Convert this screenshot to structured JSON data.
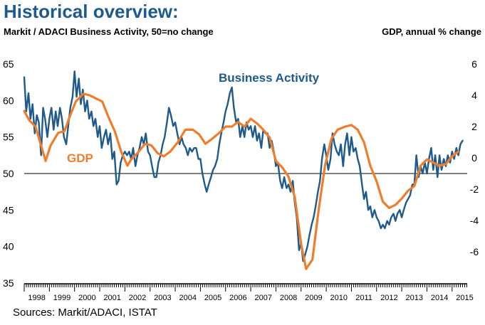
{
  "chart_data": {
    "type": "line",
    "title": "Historical overview:",
    "left_axis_label": "Markit / ADACI  Business Activity, 50=no change",
    "right_axis_label": "GDP, annual % change",
    "source": "Sources: Markit/ADACI, ISTAT",
    "y_left": {
      "min": 35,
      "max": 65,
      "ticks": [
        "65",
        "60",
        "55",
        "50",
        "45",
        "40",
        "35"
      ],
      "reference_line": 50
    },
    "y_right": {
      "min": -8,
      "max": 6,
      "ticks": [
        "6",
        "4",
        "2",
        "0",
        "-2",
        "-4",
        "-6"
      ]
    },
    "x": {
      "start": 1998.0,
      "end": 2015.6,
      "years": [
        "1998",
        "1999",
        "2000",
        "2001",
        "2002",
        "2003",
        "2004",
        "2005",
        "2006",
        "2007",
        "2008",
        "2009",
        "2010",
        "2011",
        "2012",
        "2013",
        "2014",
        "2015"
      ]
    },
    "colors": {
      "business_activity": "#1f5a8c",
      "gdp": "#ef7d2b",
      "axis": "#000000"
    },
    "series": [
      {
        "name": "Business Activity",
        "axis": "left",
        "color": "#1f5a8c",
        "label": "Business Activity",
        "points": [
          [
            1998.0,
            63.2
          ],
          [
            1998.08,
            58.5
          ],
          [
            1998.17,
            61.0
          ],
          [
            1998.25,
            57.5
          ],
          [
            1998.33,
            59.5
          ],
          [
            1998.42,
            55.5
          ],
          [
            1998.5,
            58.0
          ],
          [
            1998.58,
            57.0
          ],
          [
            1998.67,
            52.5
          ],
          [
            1998.75,
            59.0
          ],
          [
            1998.83,
            57.5
          ],
          [
            1998.92,
            55.0
          ],
          [
            1999.0,
            57.5
          ],
          [
            1999.08,
            59.0
          ],
          [
            1999.17,
            56.0
          ],
          [
            1999.25,
            58.5
          ],
          [
            1999.33,
            56.5
          ],
          [
            1999.42,
            59.0
          ],
          [
            1999.5,
            57.5
          ],
          [
            1999.58,
            55.0
          ],
          [
            1999.67,
            54.0
          ],
          [
            1999.75,
            56.5
          ],
          [
            1999.83,
            59.0
          ],
          [
            1999.92,
            60.5
          ],
          [
            2000.0,
            64.0
          ],
          [
            2000.08,
            60.5
          ],
          [
            2000.17,
            63.0
          ],
          [
            2000.25,
            59.5
          ],
          [
            2000.33,
            61.5
          ],
          [
            2000.42,
            58.5
          ],
          [
            2000.5,
            60.0
          ],
          [
            2000.58,
            57.5
          ],
          [
            2000.67,
            58.5
          ],
          [
            2000.75,
            56.5
          ],
          [
            2000.83,
            57.5
          ],
          [
            2000.92,
            55.0
          ],
          [
            2001.0,
            56.5
          ],
          [
            2001.08,
            53.5
          ],
          [
            2001.17,
            55.0
          ],
          [
            2001.25,
            56.0
          ],
          [
            2001.33,
            54.0
          ],
          [
            2001.42,
            55.5
          ],
          [
            2001.5,
            52.0
          ],
          [
            2001.58,
            53.0
          ],
          [
            2001.67,
            48.5
          ],
          [
            2001.75,
            49.0
          ],
          [
            2001.83,
            51.5
          ],
          [
            2001.92,
            52.5
          ],
          [
            2002.0,
            53.0
          ],
          [
            2002.08,
            52.5
          ],
          [
            2002.17,
            53.0
          ],
          [
            2002.25,
            52.0
          ],
          [
            2002.33,
            53.5
          ],
          [
            2002.42,
            51.0
          ],
          [
            2002.5,
            52.5
          ],
          [
            2002.58,
            53.5
          ],
          [
            2002.67,
            55.0
          ],
          [
            2002.75,
            54.0
          ],
          [
            2002.83,
            55.5
          ],
          [
            2002.92,
            53.0
          ],
          [
            2003.0,
            52.5
          ],
          [
            2003.08,
            51.0
          ],
          [
            2003.17,
            49.5
          ],
          [
            2003.25,
            49.5
          ],
          [
            2003.33,
            51.5
          ],
          [
            2003.42,
            52.5
          ],
          [
            2003.5,
            54.0
          ],
          [
            2003.58,
            55.0
          ],
          [
            2003.67,
            57.0
          ],
          [
            2003.75,
            59.0
          ],
          [
            2003.83,
            58.0
          ],
          [
            2003.92,
            56.5
          ],
          [
            2004.0,
            57.0
          ],
          [
            2004.08,
            55.5
          ],
          [
            2004.17,
            54.0
          ],
          [
            2004.25,
            55.0
          ],
          [
            2004.33,
            54.0
          ],
          [
            2004.42,
            53.5
          ],
          [
            2004.5,
            52.5
          ],
          [
            2004.58,
            53.5
          ],
          [
            2004.67,
            53.0
          ],
          [
            2004.75,
            53.5
          ],
          [
            2004.83,
            53.5
          ],
          [
            2004.92,
            52.0
          ],
          [
            2005.0,
            52.0
          ],
          [
            2005.08,
            50.0
          ],
          [
            2005.17,
            48.5
          ],
          [
            2005.25,
            47.5
          ],
          [
            2005.33,
            48.5
          ],
          [
            2005.42,
            49.5
          ],
          [
            2005.5,
            50.5
          ],
          [
            2005.58,
            51.0
          ],
          [
            2005.67,
            52.0
          ],
          [
            2005.75,
            54.0
          ],
          [
            2005.83,
            55.5
          ],
          [
            2005.92,
            57.0
          ],
          [
            2006.0,
            58.5
          ],
          [
            2006.08,
            59.5
          ],
          [
            2006.17,
            61.0
          ],
          [
            2006.25,
            61.8
          ],
          [
            2006.33,
            59.0
          ],
          [
            2006.42,
            57.0
          ],
          [
            2006.5,
            57.5
          ],
          [
            2006.58,
            55.0
          ],
          [
            2006.67,
            56.5
          ],
          [
            2006.75,
            55.0
          ],
          [
            2006.83,
            57.0
          ],
          [
            2006.92,
            56.0
          ],
          [
            2007.0,
            56.5
          ],
          [
            2007.08,
            55.0
          ],
          [
            2007.17,
            56.5
          ],
          [
            2007.25,
            54.5
          ],
          [
            2007.33,
            55.5
          ],
          [
            2007.42,
            53.5
          ],
          [
            2007.5,
            56.0
          ],
          [
            2007.58,
            55.5
          ],
          [
            2007.67,
            55.5
          ],
          [
            2007.75,
            53.5
          ],
          [
            2007.83,
            54.5
          ],
          [
            2007.92,
            53.0
          ],
          [
            2008.0,
            51.0
          ],
          [
            2008.08,
            51.5
          ],
          [
            2008.17,
            49.0
          ],
          [
            2008.25,
            48.0
          ],
          [
            2008.33,
            49.5
          ],
          [
            2008.42,
            48.0
          ],
          [
            2008.5,
            48.5
          ],
          [
            2008.58,
            47.5
          ],
          [
            2008.67,
            49.0
          ],
          [
            2008.75,
            46.0
          ],
          [
            2008.83,
            44.0
          ],
          [
            2008.92,
            39.5
          ],
          [
            2009.0,
            40.5
          ],
          [
            2009.08,
            38.0
          ],
          [
            2009.17,
            39.0
          ],
          [
            2009.25,
            40.0
          ],
          [
            2009.33,
            41.5
          ],
          [
            2009.42,
            43.0
          ],
          [
            2009.5,
            44.0
          ],
          [
            2009.58,
            45.5
          ],
          [
            2009.67,
            47.5
          ],
          [
            2009.75,
            49.0
          ],
          [
            2009.83,
            52.0
          ],
          [
            2009.92,
            54.0
          ],
          [
            2010.0,
            52.5
          ],
          [
            2010.08,
            50.5
          ],
          [
            2010.17,
            52.0
          ],
          [
            2010.25,
            55.5
          ],
          [
            2010.33,
            54.0
          ],
          [
            2010.42,
            53.0
          ],
          [
            2010.5,
            52.5
          ],
          [
            2010.58,
            54.0
          ],
          [
            2010.67,
            51.0
          ],
          [
            2010.75,
            54.0
          ],
          [
            2010.83,
            55.5
          ],
          [
            2010.92,
            52.5
          ],
          [
            2011.0,
            55.0
          ],
          [
            2011.08,
            53.0
          ],
          [
            2011.17,
            53.5
          ],
          [
            2011.25,
            52.0
          ],
          [
            2011.33,
            51.0
          ],
          [
            2011.42,
            48.5
          ],
          [
            2011.5,
            46.5
          ],
          [
            2011.58,
            47.5
          ],
          [
            2011.67,
            45.0
          ],
          [
            2011.75,
            45.5
          ],
          [
            2011.83,
            44.0
          ],
          [
            2011.92,
            45.0
          ],
          [
            2012.0,
            44.0
          ],
          [
            2012.08,
            43.5
          ],
          [
            2012.17,
            42.5
          ],
          [
            2012.25,
            43.0
          ],
          [
            2012.33,
            42.5
          ],
          [
            2012.42,
            43.5
          ],
          [
            2012.5,
            43.0
          ],
          [
            2012.58,
            44.0
          ],
          [
            2012.67,
            44.5
          ],
          [
            2012.75,
            43.5
          ],
          [
            2012.83,
            44.5
          ],
          [
            2012.92,
            45.0
          ],
          [
            2013.0,
            44.0
          ],
          [
            2013.08,
            45.0
          ],
          [
            2013.17,
            46.0
          ],
          [
            2013.25,
            46.5
          ],
          [
            2013.33,
            47.0
          ],
          [
            2013.42,
            48.5
          ],
          [
            2013.5,
            48.5
          ],
          [
            2013.58,
            52.5
          ],
          [
            2013.67,
            49.5
          ],
          [
            2013.75,
            51.0
          ],
          [
            2013.83,
            50.0
          ],
          [
            2013.92,
            51.5
          ],
          [
            2014.0,
            50.0
          ],
          [
            2014.08,
            52.0
          ],
          [
            2014.17,
            53.5
          ],
          [
            2014.25,
            50.5
          ],
          [
            2014.33,
            52.5
          ],
          [
            2014.42,
            49.5
          ],
          [
            2014.5,
            52.5
          ],
          [
            2014.58,
            50.5
          ],
          [
            2014.67,
            52.0
          ],
          [
            2014.75,
            51.0
          ],
          [
            2014.83,
            52.5
          ],
          [
            2014.92,
            51.5
          ],
          [
            2015.0,
            53.0
          ],
          [
            2015.08,
            52.0
          ],
          [
            2015.17,
            53.5
          ],
          [
            2015.25,
            52.5
          ],
          [
            2015.33,
            54.0
          ],
          [
            2015.42,
            54.5
          ]
        ]
      },
      {
        "name": "GDP",
        "axis": "right",
        "color": "#ef7d2b",
        "label": "GDP",
        "points": [
          [
            1998.0,
            3.0
          ],
          [
            1998.2,
            2.4
          ],
          [
            1998.45,
            2.0
          ],
          [
            1998.65,
            0.9
          ],
          [
            1998.85,
            -0.2
          ],
          [
            1999.05,
            0.8
          ],
          [
            1999.35,
            1.6
          ],
          [
            1999.6,
            1.7
          ],
          [
            1999.8,
            2.6
          ],
          [
            2000.05,
            3.6
          ],
          [
            2000.35,
            4.1
          ],
          [
            2000.6,
            4.0
          ],
          [
            2000.85,
            3.8
          ],
          [
            2001.1,
            3.6
          ],
          [
            2001.35,
            2.6
          ],
          [
            2001.6,
            1.7
          ],
          [
            2001.85,
            0.4
          ],
          [
            2002.1,
            -0.5
          ],
          [
            2002.25,
            -0.1
          ],
          [
            2002.5,
            0.3
          ],
          [
            2002.8,
            0.9
          ],
          [
            2003.05,
            0.8
          ],
          [
            2003.3,
            0.3
          ],
          [
            2003.55,
            0.1
          ],
          [
            2003.8,
            0.4
          ],
          [
            2004.1,
            1.0
          ],
          [
            2004.4,
            1.8
          ],
          [
            2004.7,
            1.8
          ],
          [
            2004.95,
            1.5
          ],
          [
            2005.2,
            0.9
          ],
          [
            2005.45,
            1.2
          ],
          [
            2005.75,
            1.6
          ],
          [
            2006.0,
            2.0
          ],
          [
            2006.25,
            2.0
          ],
          [
            2006.5,
            2.3
          ],
          [
            2006.75,
            2.0
          ],
          [
            2007.0,
            2.5
          ],
          [
            2007.25,
            2.2
          ],
          [
            2007.5,
            1.8
          ],
          [
            2007.75,
            1.3
          ],
          [
            2008.0,
            -0.2
          ],
          [
            2008.25,
            -0.6
          ],
          [
            2008.5,
            -1.2
          ],
          [
            2008.75,
            -2.5
          ],
          [
            2009.0,
            -5.5
          ],
          [
            2009.2,
            -7.1
          ],
          [
            2009.45,
            -6.5
          ],
          [
            2009.7,
            -3.3
          ],
          [
            2009.95,
            -0.5
          ],
          [
            2010.2,
            1.2
          ],
          [
            2010.45,
            1.8
          ],
          [
            2010.75,
            2.0
          ],
          [
            2011.0,
            2.1
          ],
          [
            2011.25,
            1.8
          ],
          [
            2011.5,
            1.0
          ],
          [
            2011.75,
            -0.5
          ],
          [
            2012.0,
            -1.5
          ],
          [
            2012.25,
            -2.8
          ],
          [
            2012.5,
            -3.2
          ],
          [
            2012.75,
            -3.0
          ],
          [
            2013.0,
            -2.6
          ],
          [
            2013.25,
            -2.1
          ],
          [
            2013.5,
            -1.8
          ],
          [
            2013.75,
            -0.5
          ],
          [
            2014.0,
            -0.1
          ],
          [
            2014.25,
            -0.3
          ],
          [
            2014.5,
            -0.5
          ],
          [
            2014.75,
            -0.4
          ],
          [
            2015.0,
            0.1
          ],
          [
            2015.25,
            0.4
          ]
        ]
      }
    ]
  }
}
